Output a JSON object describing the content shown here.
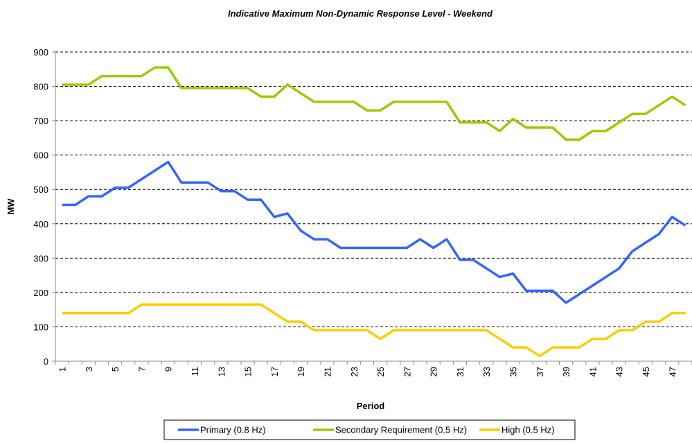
{
  "chart_data": {
    "type": "line",
    "title": "Indicative Maximum Non-Dynamic Response Level - Weekend",
    "x_label": "Period",
    "y_label": "MW",
    "categories": [
      1,
      null,
      3,
      null,
      5,
      null,
      7,
      null,
      9,
      null,
      11,
      null,
      13,
      null,
      15,
      null,
      17,
      null,
      19,
      null,
      21,
      null,
      23,
      null,
      25,
      null,
      27,
      null,
      29,
      null,
      31,
      null,
      33,
      null,
      35,
      null,
      37,
      null,
      39,
      null,
      41,
      null,
      43,
      null,
      45,
      null,
      47,
      null
    ],
    "series": [
      {
        "name": "Primary (0.8 Hz)",
        "color": "#3366ff",
        "values": [
          455,
          455,
          480,
          480,
          505,
          505,
          530,
          555,
          580,
          520,
          520,
          520,
          495,
          495,
          470,
          470,
          420,
          430,
          380,
          355,
          355,
          330,
          330,
          330,
          330,
          330,
          330,
          355,
          330,
          355,
          295,
          295,
          270,
          245,
          255,
          205,
          205,
          205,
          170,
          195,
          220,
          245,
          270,
          320,
          345,
          370,
          420,
          395
        ]
      },
      {
        "name": "Secondary Requirement (0.5 Hz)",
        "color": "#99cc00",
        "values": [
          805,
          805,
          805,
          830,
          830,
          830,
          830,
          855,
          855,
          795,
          795,
          795,
          795,
          795,
          795,
          770,
          770,
          805,
          780,
          755,
          755,
          755,
          755,
          730,
          730,
          755,
          755,
          755,
          755,
          755,
          695,
          695,
          695,
          670,
          705,
          680,
          680,
          680,
          645,
          645,
          670,
          670,
          695,
          720,
          720,
          745,
          770,
          745
        ]
      },
      {
        "name": "High (0.5 Hz)",
        "color": "#ffcc00",
        "values": [
          140,
          140,
          140,
          140,
          140,
          140,
          165,
          165,
          165,
          165,
          165,
          165,
          165,
          165,
          165,
          165,
          140,
          115,
          115,
          90,
          90,
          90,
          90,
          90,
          65,
          90,
          90,
          90,
          90,
          90,
          90,
          90,
          90,
          65,
          40,
          40,
          15,
          40,
          40,
          40,
          65,
          65,
          90,
          90,
          115,
          115,
          140,
          140
        ]
      }
    ],
    "ylim": [
      0,
      900
    ],
    "yticks": [
      0,
      100,
      200,
      300,
      400,
      500,
      600,
      700,
      800,
      900
    ],
    "grid": true,
    "legend": "bottom"
  }
}
